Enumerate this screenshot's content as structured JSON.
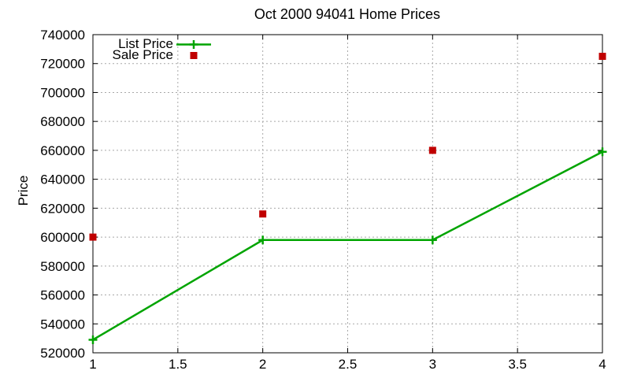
{
  "chart_data": {
    "type": "line",
    "title": "Oct 2000 94041 Home Prices",
    "xlabel": "",
    "ylabel": "Price",
    "x": [
      1,
      2,
      3,
      4
    ],
    "series": [
      {
        "name": "List Price",
        "type": "line",
        "marker": "plus",
        "color": "#00a400",
        "values": [
          529000,
          598000,
          598000,
          659000
        ]
      },
      {
        "name": "Sale Price",
        "type": "scatter",
        "marker": "square",
        "color": "#c00000",
        "values": [
          600000,
          616000,
          660000,
          725000
        ]
      }
    ],
    "xlim": [
      1,
      4
    ],
    "ylim": [
      520000,
      740000
    ],
    "xticks": [
      1,
      1.5,
      2,
      2.5,
      3,
      3.5,
      4
    ],
    "yticks": [
      520000,
      540000,
      560000,
      580000,
      600000,
      620000,
      640000,
      660000,
      680000,
      700000,
      720000,
      740000
    ],
    "grid": true,
    "grid_style": "dashed",
    "legend_position": "top-left-inside",
    "colors": {
      "background": "#ffffff",
      "axis": "#000000",
      "grid": "#a8a8a8",
      "text": "#000000"
    }
  }
}
